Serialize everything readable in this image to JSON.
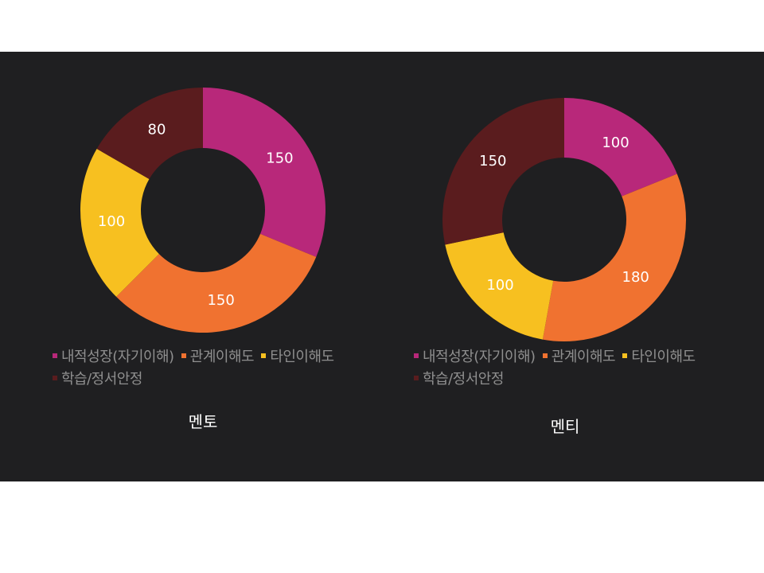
{
  "chart_data": [
    {
      "type": "pie",
      "donut": true,
      "title": "멘토",
      "categories": [
        "내적성장(자기이해)",
        "관계이해도",
        "타인이해도",
        "학습/정서안정"
      ],
      "values": [
        150,
        150,
        100,
        80
      ],
      "colors": [
        "#b8287a",
        "#f07230",
        "#f7c020",
        "#5a1c1e"
      ],
      "legend": "bottom"
    },
    {
      "type": "pie",
      "donut": true,
      "title": "멘티",
      "categories": [
        "내적성장(자기이해)",
        "관계이해도",
        "타인이해도",
        "학습/정서안정"
      ],
      "values": [
        100,
        180,
        100,
        150
      ],
      "colors": [
        "#b8287a",
        "#f07230",
        "#f7c020",
        "#5a1c1e"
      ],
      "legend": "bottom"
    }
  ]
}
